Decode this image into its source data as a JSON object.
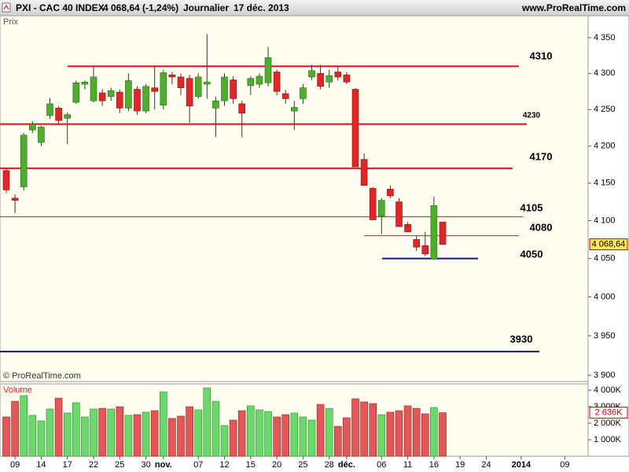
{
  "header": {
    "symbol": "PXI - CAC 40 INDEX",
    "quote": "4 068,64 (-1,24%)",
    "period": "Journalier",
    "date": "17 déc. 2013",
    "site": "www.ProRealTime.com"
  },
  "chart_data": [
    {
      "type": "candlestick",
      "panel_label": "Prix",
      "copyright": "© ProRealTime.com",
      "categories": [
        null,
        "09",
        null,
        null,
        "14",
        null,
        null,
        "17",
        null,
        null,
        "22",
        null,
        null,
        "25",
        null,
        null,
        "30",
        null,
        "nov.",
        null,
        null,
        null,
        "07",
        null,
        null,
        "12",
        null,
        null,
        "15",
        null,
        null,
        "20",
        null,
        null,
        "25",
        null,
        null,
        "28",
        null,
        "déc.",
        null,
        null,
        null,
        "06",
        null,
        null,
        "11",
        null,
        null,
        "16",
        null,
        null,
        "19",
        null,
        null,
        "24",
        null,
        null,
        null,
        "2014",
        null,
        null,
        null,
        null,
        "09",
        null,
        null
      ],
      "open": [
        4167,
        4130,
        4145,
        4222,
        4205,
        4242,
        4252,
        4238,
        4260,
        4285,
        4262,
        4273,
        4268,
        4274,
        4252,
        4278,
        4248,
        4280,
        4256,
        4298,
        4295,
        4293,
        4268,
        4285,
        4252,
        4262,
        4291,
        4258,
        4283,
        4285,
        4287,
        4302,
        4272,
        4248,
        4265,
        4295,
        4300,
        4288,
        4302,
        4298,
        4278,
        4182,
        4143,
        4106,
        4142,
        4125,
        4095,
        4075,
        4067,
        4049,
        4098,
        null,
        null,
        null,
        null,
        null,
        null,
        null,
        null,
        null,
        null,
        null,
        null,
        null,
        null,
        null,
        null
      ],
      "high": [
        4170,
        4135,
        4218,
        4234,
        4228,
        4266,
        4255,
        4246,
        4290,
        4290,
        4310,
        4278,
        4280,
        4278,
        4300,
        4282,
        4285,
        4310,
        4305,
        4302,
        4300,
        4298,
        4300,
        4355,
        4268,
        4300,
        4296,
        4262,
        4296,
        4300,
        4337,
        4305,
        4277,
        4262,
        4285,
        4312,
        4312,
        4305,
        4310,
        4302,
        4280,
        4190,
        4145,
        4130,
        4147,
        4130,
        4098,
        4080,
        4085,
        4132,
        4098,
        null,
        null,
        null,
        null,
        null,
        null,
        null,
        null,
        null,
        null,
        null,
        null,
        null,
        null,
        null,
        null
      ],
      "low": [
        4137,
        4110,
        4140,
        4218,
        4200,
        4237,
        4230,
        4203,
        4258,
        4278,
        4260,
        4255,
        4262,
        4245,
        4248,
        4243,
        4245,
        4250,
        4250,
        4285,
        4270,
        4232,
        4265,
        4265,
        4212,
        4255,
        4258,
        4212,
        4270,
        4280,
        4282,
        4270,
        4258,
        4222,
        4258,
        4291,
        4278,
        4280,
        4290,
        4285,
        4172,
        4147,
        4101,
        4082,
        4130,
        4092,
        4085,
        4060,
        4053,
        4049,
        4068.64,
        null,
        null,
        null,
        null,
        null,
        null,
        null,
        null,
        null,
        null,
        null,
        null,
        null,
        null,
        null,
        null
      ],
      "close": [
        4141,
        4127,
        4215,
        4230,
        4226,
        4258,
        4235,
        4243,
        4287,
        4288,
        4295,
        4262,
        4276,
        4252,
        4290,
        4248,
        4282,
        4275,
        4301,
        4295,
        4280,
        4255,
        4295,
        4288,
        4262,
        4295,
        4265,
        4245,
        4293,
        4296,
        4322,
        4275,
        4265,
        4253,
        4280,
        4304,
        4282,
        4297,
        4295,
        4288,
        4172,
        4147,
        4101,
        4127,
        4133,
        4092,
        4085,
        4065,
        4056,
        4120,
        4068.64,
        null,
        null,
        null,
        null,
        null,
        null,
        null,
        null,
        null,
        null,
        null,
        null,
        null,
        null,
        null,
        null
      ],
      "up_color": "#4cae2c",
      "down_color": "#e02626",
      "log_scale": true,
      "ylim": [
        3892,
        4381
      ],
      "yticks": [
        {
          "value": 3900,
          "label": "3 900"
        },
        {
          "value": 3950,
          "label": "3 950"
        },
        {
          "value": 4000,
          "label": "4 000"
        },
        {
          "value": 4050,
          "label": "4 050"
        },
        {
          "value": 4100,
          "label": "4 100"
        },
        {
          "value": 4150,
          "label": "4 150"
        },
        {
          "value": 4200,
          "label": "4 200"
        },
        {
          "value": 4250,
          "label": "4 250"
        },
        {
          "value": 4300,
          "label": "4 300"
        },
        {
          "value": 4350,
          "label": "4 350"
        }
      ],
      "last_label": "4 068,64",
      "levels": [
        {
          "value": 4310,
          "color": "#e3141c"
        },
        {
          "value": 4230,
          "color": "#e3141c"
        },
        {
          "value": 4170,
          "color": "#e3141c"
        },
        {
          "value": 4105,
          "color": "#e3141c"
        },
        {
          "value": 4080,
          "color": "#e3141c"
        },
        {
          "value": 4050,
          "color": "#16167a"
        },
        {
          "value": 3930,
          "color": "#16167a"
        }
      ]
    },
    {
      "type": "volume",
      "panel_label": "Volume",
      "values": [
        2380,
        3330,
        3670,
        2480,
        2140,
        2860,
        3520,
        2620,
        3240,
        2380,
        2860,
        2900,
        2860,
        3000,
        2480,
        2520,
        2670,
        2760,
        3900,
        2290,
        2430,
        3000,
        2810,
        4140,
        3330,
        1860,
        2190,
        2760,
        3050,
        2810,
        2710,
        2380,
        2520,
        2620,
        2380,
        2190,
        3140,
        2900,
        1810,
        2330,
        3480,
        3290,
        3190,
        2520,
        2670,
        2760,
        3050,
        2900,
        2570,
        2950,
        2636,
        null,
        null,
        null,
        null,
        null,
        null,
        null,
        null,
        null,
        null,
        null,
        null,
        null,
        null,
        null,
        null
      ],
      "ylim": [
        0,
        4380
      ],
      "yticks": [
        {
          "value": 1000,
          "label": "1 000K"
        },
        {
          "value": 2000,
          "label": "2 000K"
        },
        {
          "value": 3000,
          "label": "3 000K"
        },
        {
          "value": 4000,
          "label": "4 000K"
        }
      ],
      "last_label": "2 636K"
    }
  ]
}
